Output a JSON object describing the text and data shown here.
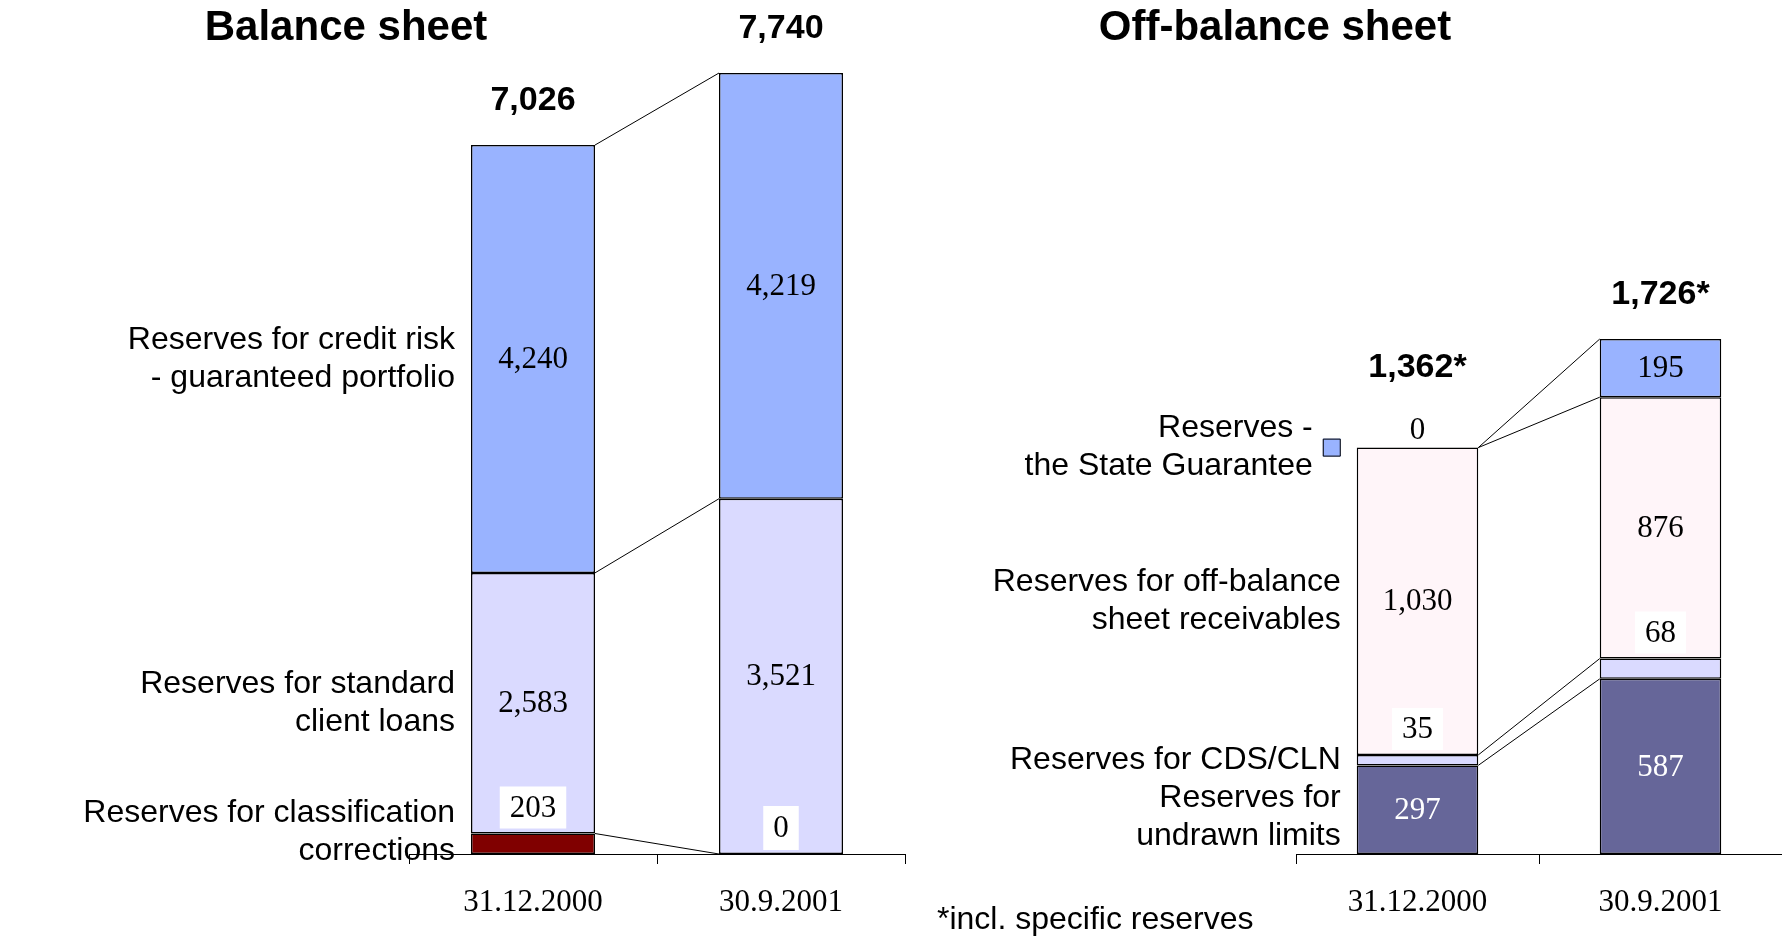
{
  "chart_data": [
    {
      "type": "bar",
      "title": "Balance sheet",
      "categories": [
        "31.12.2000",
        "30.9.2001"
      ],
      "stacked": true,
      "totals": [
        "7,026",
        "7,740"
      ],
      "series": [
        {
          "name": "Reserves for classification\ncorrections",
          "color": "#800000",
          "values": [
            203,
            0
          ],
          "value_labels": [
            "203",
            null
          ]
        },
        {
          "name": "Reserves for standard\nclient loans",
          "color": "#dadaff",
          "values": [
            2583,
            3521
          ],
          "value_labels": [
            "2,583",
            "3,521"
          ]
        },
        {
          "name": "Reserves for credit risk\n- guaranteed portfolio",
          "color": "#99b3ff",
          "values": [
            4240,
            4219
          ],
          "value_labels": [
            "4,240",
            "4,219"
          ]
        }
      ],
      "annotations": [
        {
          "text": "0",
          "x": "30.9.2001",
          "y": 0
        }
      ]
    },
    {
      "type": "bar",
      "title": "Off-balance sheet",
      "categories": [
        "31.12.2000",
        "30.9.2001"
      ],
      "stacked": true,
      "totals": [
        "1,362*",
        "1,726*"
      ],
      "series": [
        {
          "name": "Reserves for\nundrawn limits",
          "color": "#666699",
          "values": [
            297,
            587
          ],
          "value_labels": [
            "297",
            "587"
          ]
        },
        {
          "name": "Reserves for CDS/CLN",
          "color": "#dadaff",
          "values": [
            35,
            68
          ],
          "value_labels": [
            "35",
            "68"
          ]
        },
        {
          "name": "Reserves for off-balance\nsheet receivables",
          "color": "#fff5f9",
          "values": [
            1030,
            876
          ],
          "value_labels": [
            "1,030",
            "876"
          ]
        },
        {
          "name": "Reserves -\nthe State Guarantee",
          "color": "#99b3ff",
          "values": [
            0,
            195
          ],
          "value_labels": [
            "0",
            "195"
          ]
        }
      ],
      "annotations": [
        "*incl. specific reserves"
      ]
    }
  ]
}
